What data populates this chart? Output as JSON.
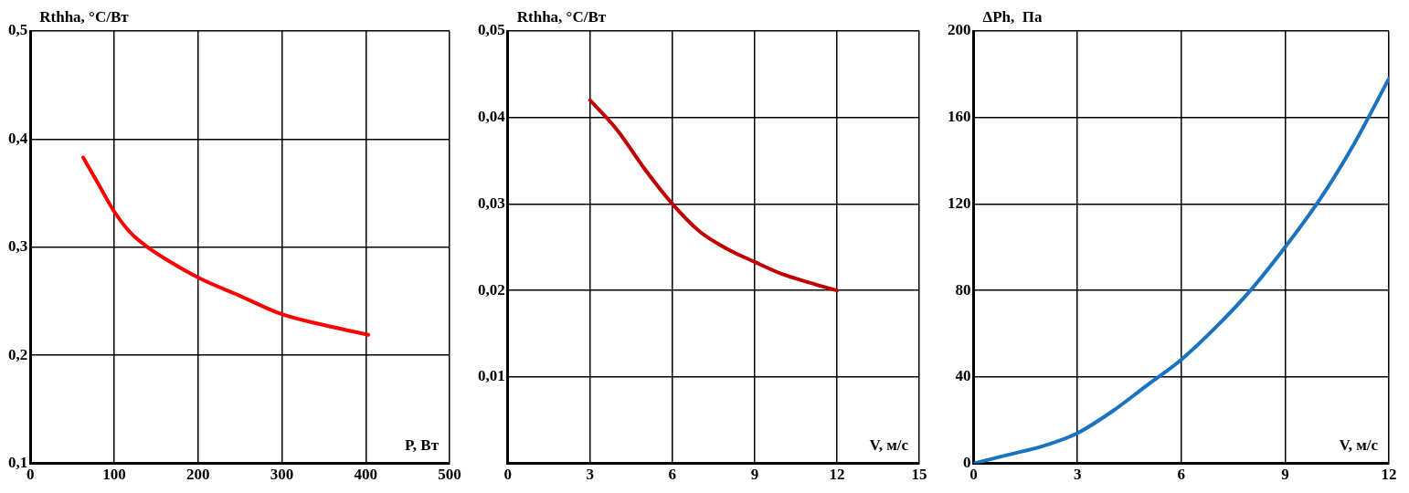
{
  "chart_data": [
    {
      "type": "line",
      "ylabel": "Rthha, °C/Вт",
      "xlabel": "P, Вт",
      "xlim": [
        0,
        500
      ],
      "ylim": [
        0.1,
        0.5
      ],
      "xticks": [
        0,
        100,
        200,
        300,
        400,
        500
      ],
      "yticks": [
        {
          "value": 0.1,
          "label": "0,1"
        },
        {
          "value": 0.2,
          "label": "0,2"
        },
        {
          "value": 0.3,
          "label": "0,3"
        },
        {
          "value": 0.4,
          "label": "0,4"
        },
        {
          "value": 0.5,
          "label": "0,5"
        }
      ],
      "grid": true,
      "marker": "none",
      "line_style": "solid",
      "x": [
        63,
        80,
        100,
        120,
        140,
        170,
        200,
        250,
        300,
        350,
        403
      ],
      "series": [
        {
          "color": "#ff0000",
          "values": [
            0.383,
            0.36,
            0.333,
            0.313,
            0.3,
            0.285,
            0.272,
            0.255,
            0.238,
            0.228,
            0.219
          ]
        }
      ]
    },
    {
      "type": "line",
      "ylabel": "Rthha, °C/Вт",
      "xlabel": "V, м/с",
      "xlim": [
        0,
        15
      ],
      "ylim": [
        0,
        0.05
      ],
      "xticks": [
        0,
        3,
        6,
        9,
        12,
        15
      ],
      "yticks": [
        {
          "value": 0,
          "label": null
        },
        {
          "value": 0.01,
          "label": "0,01"
        },
        {
          "value": 0.02,
          "label": "0,02"
        },
        {
          "value": 0.03,
          "label": "0,03"
        },
        {
          "value": 0.04,
          "label": "0,04"
        },
        {
          "value": 0.05,
          "label": "0,05"
        }
      ],
      "grid": true,
      "marker": "none",
      "line_style": "solid",
      "x": [
        3,
        4,
        5,
        6,
        7,
        8,
        9,
        10,
        11,
        12
      ],
      "series": [
        {
          "color": "#c00000",
          "values": [
            0.042,
            0.0385,
            0.034,
            0.03,
            0.0268,
            0.0248,
            0.0233,
            0.0219,
            0.0209,
            0.02
          ]
        }
      ]
    },
    {
      "type": "line",
      "ylabel": "ΔPh,  Па",
      "xlabel": "V, м/с",
      "xlim": [
        0,
        12
      ],
      "ylim": [
        0,
        200
      ],
      "xticks": [
        0,
        3,
        6,
        9,
        12
      ],
      "yticks": [
        0,
        40,
        80,
        120,
        160,
        200
      ],
      "grid": true,
      "marker": "none",
      "line_style": "solid",
      "x": [
        0,
        1,
        2,
        3,
        4,
        5,
        6,
        7,
        8,
        9,
        10,
        11,
        12
      ],
      "series": [
        {
          "color": "#1a73c0",
          "values": [
            0,
            4,
            8,
            14,
            24,
            36,
            48,
            63,
            80,
            100,
            122,
            148,
            178
          ]
        }
      ]
    }
  ]
}
